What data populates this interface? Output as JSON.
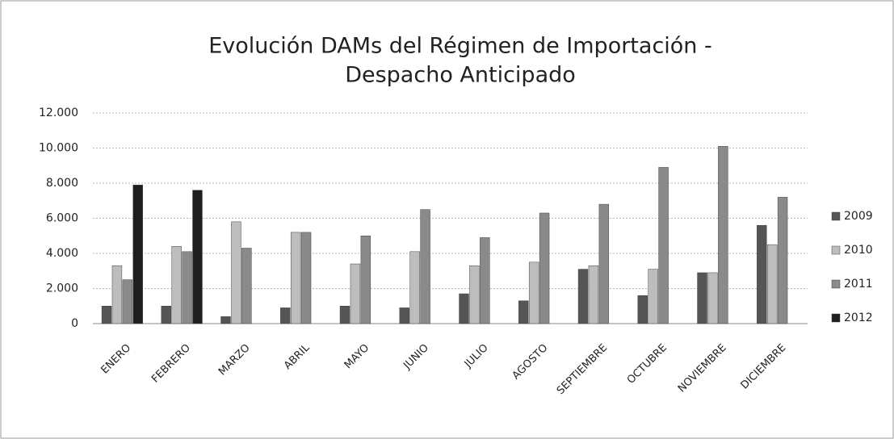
{
  "chart_data": {
    "type": "bar",
    "title": [
      "Evolución DAMs del Régimen de Importación -",
      "Despacho Anticipado"
    ],
    "categories": [
      "ENERO",
      "FEBRERO",
      "MARZO",
      "ABRIL",
      "MAYO",
      "JUNIO",
      "JULIO",
      "AGOSTO",
      "SEPTIEMBRE",
      "OCTUBRE",
      "NOVIEMBRE",
      "DICIEMBRE"
    ],
    "series": [
      {
        "name": "2009",
        "color": "#555555",
        "values": [
          1000,
          1000,
          400,
          900,
          1000,
          900,
          1700,
          1300,
          3100,
          1600,
          2900,
          5600
        ]
      },
      {
        "name": "2010",
        "color": "#bdbdbd",
        "values": [
          3300,
          4400,
          5800,
          5200,
          3400,
          4100,
          3300,
          3500,
          3300,
          3100,
          2900,
          4500
        ]
      },
      {
        "name": "2011",
        "color": "#8a8a8a",
        "values": [
          2500,
          4100,
          4300,
          5200,
          5000,
          6500,
          4900,
          6300,
          6800,
          8900,
          10100,
          7200
        ]
      },
      {
        "name": "2012",
        "color": "#1e1e1e",
        "values": [
          7900,
          7600,
          null,
          null,
          null,
          null,
          null,
          null,
          null,
          null,
          null,
          null
        ]
      }
    ],
    "ylim": [
      0,
      12000
    ],
    "yticks": [
      0,
      {
        "value": 2000,
        "label": "2.000"
      },
      {
        "value": 4000,
        "label": "4.000"
      },
      {
        "value": 6000,
        "label": "6.000"
      },
      {
        "value": 8000,
        "label": "8.000"
      },
      {
        "value": 10000,
        "label": "10.000"
      },
      {
        "value": 12000,
        "label": "12.000"
      }
    ],
    "grid": true,
    "legend": "right"
  }
}
